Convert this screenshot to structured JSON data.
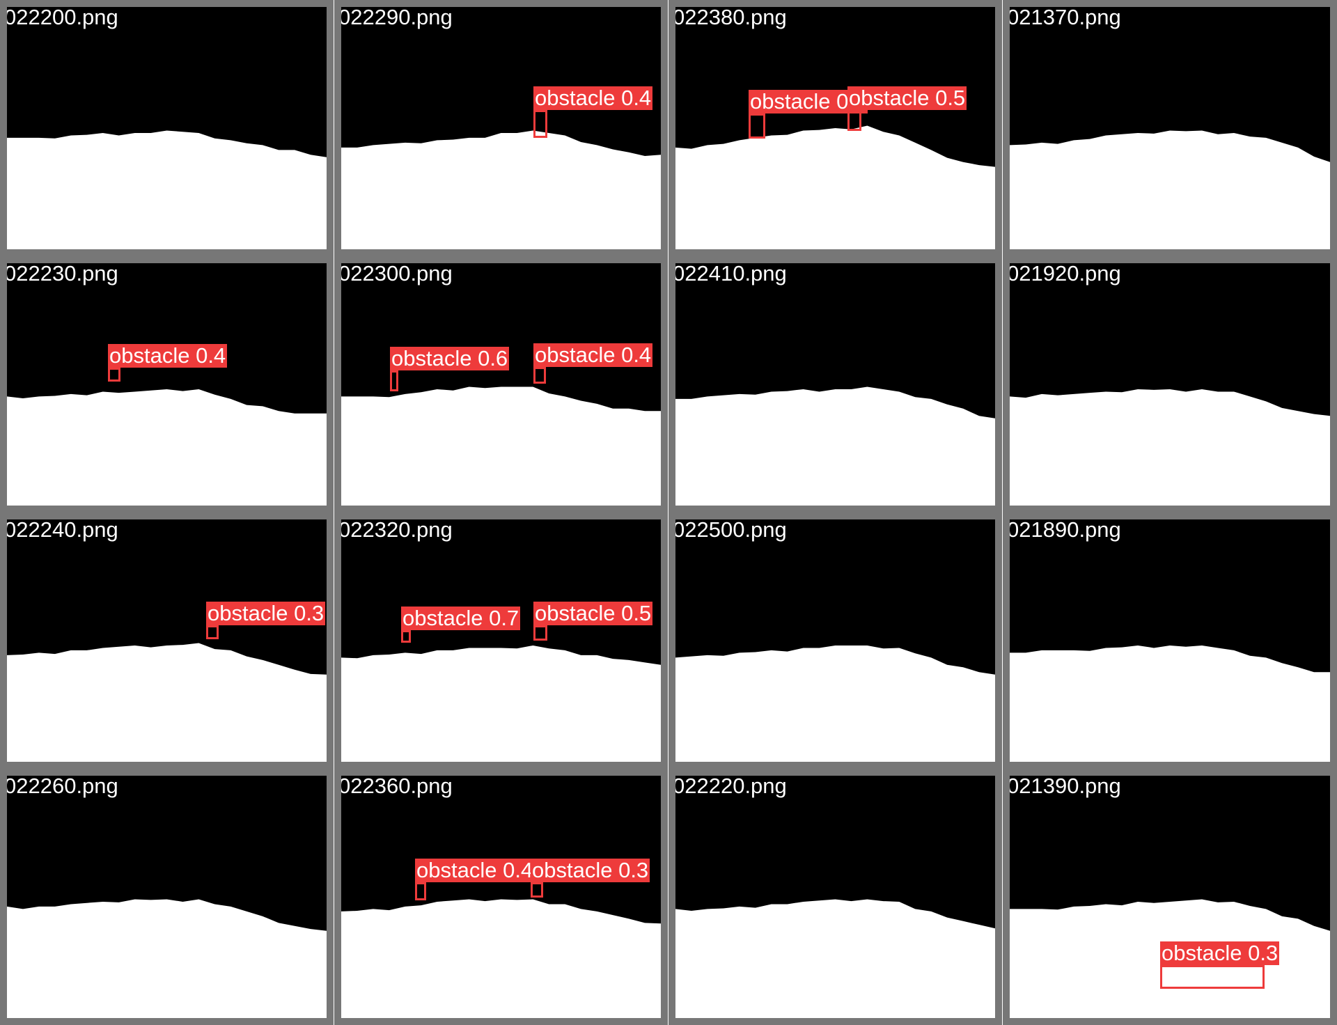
{
  "colors": {
    "border": "#777777",
    "background": "#000000",
    "mask": "#ffffff",
    "detection": "#ee3b3b",
    "text": "#ffffff"
  },
  "tiles": [
    {
      "filename": "022200.png",
      "detections": []
    },
    {
      "filename": "022290.png",
      "detections": [
        {
          "label": "obstacle 0.4"
        }
      ]
    },
    {
      "filename": "022380.png",
      "detections": [
        {
          "label": "obstacle 0.4"
        },
        {
          "label": "obstacle 0.5"
        }
      ]
    },
    {
      "filename": "021370.png",
      "detections": []
    },
    {
      "filename": "022230.png",
      "detections": [
        {
          "label": "obstacle 0.4"
        }
      ]
    },
    {
      "filename": "022300.png",
      "detections": [
        {
          "label": "obstacle 0.6"
        },
        {
          "label": "obstacle 0.4"
        }
      ]
    },
    {
      "filename": "022410.png",
      "detections": []
    },
    {
      "filename": "021920.png",
      "detections": []
    },
    {
      "filename": "022240.png",
      "detections": [
        {
          "label": "obstacle 0.3"
        }
      ]
    },
    {
      "filename": "022320.png",
      "detections": [
        {
          "label": "obstacle 0.7"
        },
        {
          "label": "obstacle 0.5"
        }
      ]
    },
    {
      "filename": "022500.png",
      "detections": []
    },
    {
      "filename": "021890.png",
      "detections": []
    },
    {
      "filename": "022260.png",
      "detections": []
    },
    {
      "filename": "022360.png",
      "detections": [
        {
          "label": "obstacle 0.4"
        },
        {
          "label": "obstacle 0.3"
        }
      ]
    },
    {
      "filename": "022220.png",
      "detections": []
    },
    {
      "filename": "021390.png",
      "detections": [
        {
          "label": "obstacle 0.3"
        }
      ]
    }
  ]
}
